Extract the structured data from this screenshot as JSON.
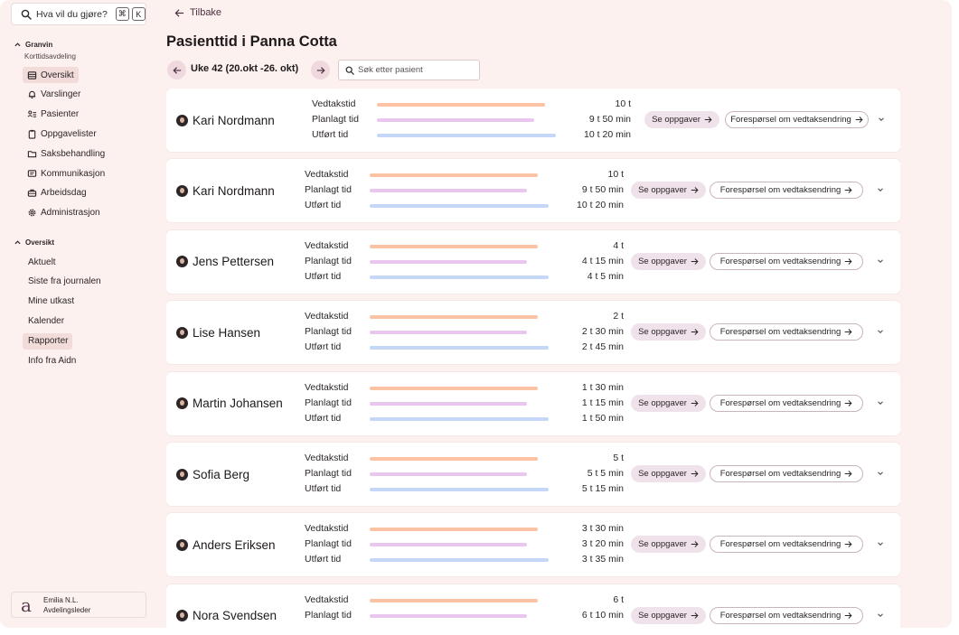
{
  "sidebar": {
    "command_search": {
      "placeholder": "Hva vil du gjøre?",
      "shortcut_mod": "⌘",
      "shortcut_key": "K",
      "icon": "search-icon"
    },
    "group1": {
      "title": "Granvin",
      "subtitle": "Korttidsavdeling"
    },
    "group1_items": [
      {
        "label": "Oversikt",
        "icon": "table-icon",
        "active": true
      },
      {
        "label": "Varslinger",
        "icon": "bell-icon",
        "active": false
      },
      {
        "label": "Pasienter",
        "icon": "patients-icon",
        "active": false
      },
      {
        "label": "Oppgavelister",
        "icon": "clipboard-icon",
        "active": false
      },
      {
        "label": "Saksbehandling",
        "icon": "folder-icon",
        "active": false
      },
      {
        "label": "Kommunikasjon",
        "icon": "message-icon",
        "active": false
      },
      {
        "label": "Arbeidsdag",
        "icon": "briefcase-icon",
        "active": false
      },
      {
        "label": "Administrasjon",
        "icon": "gear-icon",
        "active": false
      }
    ],
    "group2": {
      "title": "Oversikt"
    },
    "group2_items": [
      {
        "label": "Aktuelt",
        "active": false
      },
      {
        "label": "Siste fra journalen",
        "active": false
      },
      {
        "label": "Mine utkast",
        "active": false
      },
      {
        "label": "Kalender",
        "active": false
      },
      {
        "label": "Rapporter",
        "active": true
      },
      {
        "label": "Info fra Aidn",
        "active": false
      }
    ],
    "user": {
      "logo": "a",
      "name": "Emilia N.L.",
      "role": "Avdelingsleder"
    }
  },
  "header": {
    "back_label": "Tilbake",
    "title": "Pasienttid i Panna Cotta",
    "week_label": "Uke 42 (20.okt -26. okt)",
    "search_placeholder": "Søk etter pasient"
  },
  "labels": {
    "vedtak": "Vedtakstid",
    "planlagt": "Planlagt tid",
    "utfort": "Utført tid",
    "tasks_button": "Se oppgaver",
    "request_button": "Forespørsel om vedtaksendring"
  },
  "colors": {
    "vedtak_bar": "#fbc3a4",
    "planlagt_bar": "#e8c6ee",
    "utfort_bar": "#c4d7f7",
    "background": "#fdf1ef"
  },
  "patients": [
    {
      "name": "Kari Nordmann",
      "vedtak": "10 t",
      "planlagt": "9 t 50 min",
      "utfort": "10 t 20 min",
      "vedtak_min": 600,
      "planlagt_min": 590,
      "utfort_min": 620
    },
    {
      "name": "Kari Nordmann",
      "vedtak": "10 t",
      "planlagt": "9 t 50 min",
      "utfort": "10 t 20 min",
      "vedtak_min": 600,
      "planlagt_min": 590,
      "utfort_min": 620
    },
    {
      "name": "Jens Pettersen",
      "vedtak": "4 t",
      "planlagt": "4 t 15 min",
      "utfort": "4 t 5 min",
      "vedtak_min": 240,
      "planlagt_min": 255,
      "utfort_min": 245
    },
    {
      "name": "Lise Hansen",
      "vedtak": "2 t",
      "planlagt": "2 t 30 min",
      "utfort": "2 t 45 min",
      "vedtak_min": 120,
      "planlagt_min": 150,
      "utfort_min": 165
    },
    {
      "name": "Martin Johansen",
      "vedtak": "1 t 30 min",
      "planlagt": "1 t 15 min",
      "utfort": "1 t 50 min",
      "vedtak_min": 90,
      "planlagt_min": 75,
      "utfort_min": 110
    },
    {
      "name": "Sofia Berg",
      "vedtak": "5 t",
      "planlagt": "5 t 5 min",
      "utfort": "5 t 15 min",
      "vedtak_min": 300,
      "planlagt_min": 305,
      "utfort_min": 315
    },
    {
      "name": "Anders Eriksen",
      "vedtak": "3 t 30 min",
      "planlagt": "3 t 20 min",
      "utfort": "3 t 35 min",
      "vedtak_min": 210,
      "planlagt_min": 200,
      "utfort_min": 215
    },
    {
      "name": "Nora Svendsen",
      "vedtak": "6 t",
      "planlagt": "6 t 10 min",
      "utfort": "",
      "vedtak_min": 360,
      "planlagt_min": 370,
      "utfort_min": 0
    }
  ]
}
